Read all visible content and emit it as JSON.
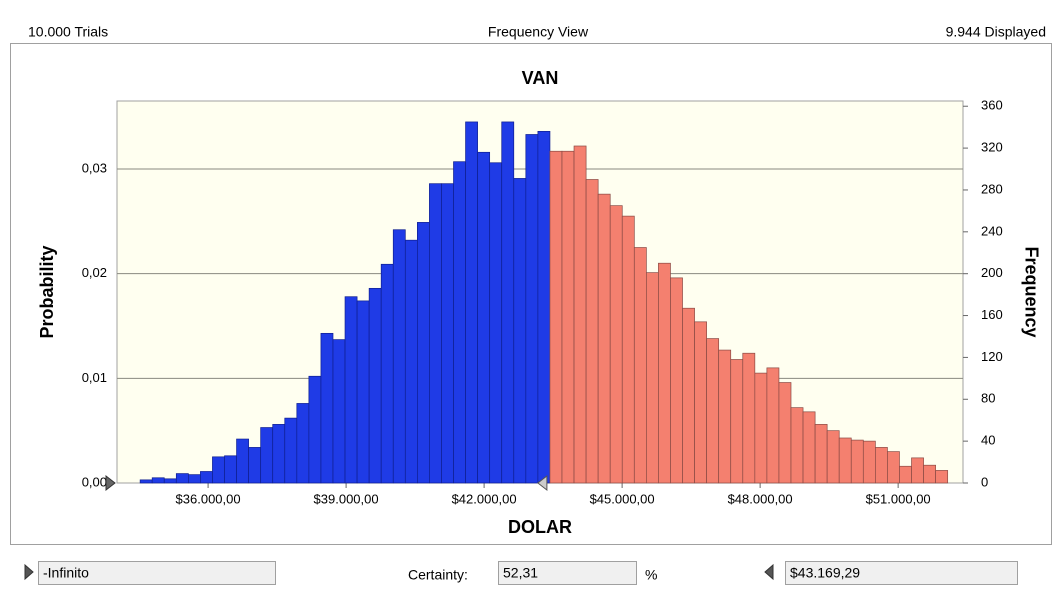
{
  "chart_data": {
    "type": "histogram",
    "trials": "10.000 Trials",
    "view": "Frequency View",
    "displayed": "9.944 Displayed",
    "title": "VAN",
    "x_label": "DOLAR",
    "y_label": "Probability",
    "y2_label": "Frequency",
    "bins": [
      34523,
      34785,
      35047,
      35309,
      35571,
      35833,
      36095,
      36357,
      36619,
      36881,
      37143,
      37405,
      37667,
      37929,
      38191,
      38453,
      38715,
      38977,
      39239,
      39501,
      39763,
      40025,
      40287,
      40549,
      40811,
      41073,
      41335,
      41597,
      41859,
      42121,
      42383,
      42645,
      42907,
      43169,
      43431,
      43693,
      43955,
      44217,
      44479,
      44741,
      45003,
      45265,
      45527,
      45789,
      46051,
      46313,
      46575,
      46837,
      47099,
      47361,
      47623,
      47885,
      48147,
      48409,
      48671,
      48933,
      49195,
      49457,
      49719,
      49981,
      50243,
      50505,
      50767,
      51029,
      51291,
      51553,
      51815,
      52077
    ],
    "counts": [
      3,
      5,
      4,
      9,
      8,
      11,
      25,
      26,
      42,
      34,
      53,
      56,
      62,
      76,
      102,
      143,
      137,
      178,
      174,
      186,
      209,
      242,
      232,
      249,
      286,
      286,
      307,
      345,
      316,
      306,
      345,
      291,
      333,
      336,
      317,
      317,
      322,
      290,
      276,
      265,
      255,
      225,
      201,
      210,
      196,
      167,
      154,
      138,
      127,
      118,
      124,
      105,
      110,
      96,
      72,
      68,
      56,
      50,
      43,
      41,
      40,
      34,
      30,
      16,
      24,
      17,
      12
    ],
    "axis": "y2",
    "inside_color": "#1f3be6",
    "outside_color": "#f4806f",
    "xlim": [
      34020,
      52410
    ],
    "xticks": [
      {
        "value": 36000,
        "label": "$36.000,00"
      },
      {
        "value": 39000,
        "label": "$39.000,00"
      },
      {
        "value": 42000,
        "label": "$42.000,00"
      },
      {
        "value": 45000,
        "label": "$45.000,00"
      },
      {
        "value": 48000,
        "label": "$48.000,00"
      },
      {
        "value": 51000,
        "label": "$51.000,00"
      }
    ],
    "ylim": [
      0,
      0.0365
    ],
    "yticks": [
      {
        "value": 0,
        "label": "0,00"
      },
      {
        "value": 0.01,
        "label": "0,01"
      },
      {
        "value": 0.02,
        "label": "0,02"
      },
      {
        "value": 0.03,
        "label": "0,03"
      }
    ],
    "y2lim": [
      0,
      365
    ],
    "y2ticks": [
      0,
      40,
      80,
      120,
      160,
      200,
      240,
      280,
      320,
      360
    ],
    "grid": true,
    "lower": "-Infinito",
    "certainty_label": "Certainty:",
    "certainty": "52,31",
    "percent": "%",
    "upper": {
      "value": 43169.29,
      "label": "$43.169,29"
    }
  }
}
